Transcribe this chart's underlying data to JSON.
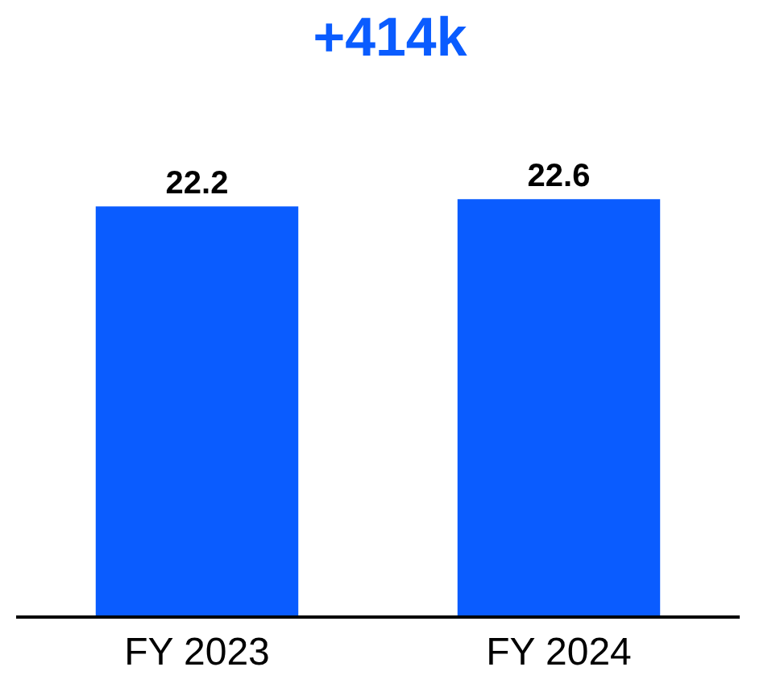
{
  "chart_data": {
    "type": "bar",
    "title": "+414k",
    "categories": [
      "FY 2023",
      "FY 2024"
    ],
    "values": [
      22.2,
      22.6
    ],
    "color": "#0a5cff",
    "data_labels": true,
    "tick_labels": "x"
  }
}
